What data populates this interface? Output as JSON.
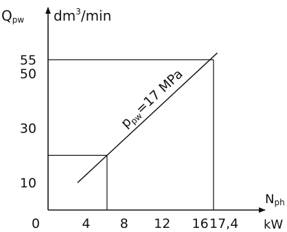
{
  "chart_data": {
    "type": "line",
    "y_axis_label": {
      "symbol": "Q",
      "subscript": "pw",
      "unit_base": "dm",
      "unit_exp": "3",
      "unit_tail": "/min"
    },
    "x_axis_label": {
      "symbol": "N",
      "subscript": "ph",
      "unit": "kW"
    },
    "origin_label": "0",
    "x_ticks": [
      {
        "value": 4,
        "label": "4"
      },
      {
        "value": 8,
        "label": "8"
      },
      {
        "value": 12,
        "label": "12"
      },
      {
        "value": 16,
        "label": "16"
      },
      {
        "value": 17.4,
        "label": "17,4"
      }
    ],
    "y_ticks": [
      {
        "value": 10,
        "label": "10"
      },
      {
        "value": 30,
        "label": "30"
      },
      {
        "value": 50,
        "label": "50"
      },
      {
        "value": 55,
        "label": "55"
      }
    ],
    "xlim": [
      0,
      19.5
    ],
    "ylim": [
      0,
      64
    ],
    "series": [
      {
        "points": [
          {
            "x": 3.1,
            "y": 10
          },
          {
            "x": 17.8,
            "y": 57.5
          }
        ],
        "label": {
          "symbol": "p",
          "subscript": "pw",
          "text": "=17 MPa"
        }
      }
    ],
    "reference_points": [
      {
        "x": 17.4,
        "y": 55
      },
      {
        "x": 6.2,
        "y": 20
      }
    ],
    "grid": false
  }
}
